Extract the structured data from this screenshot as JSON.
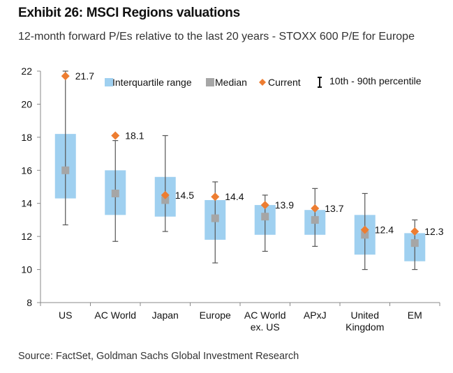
{
  "header": {
    "title": "Exhibit 26: MSCI Regions valuations",
    "subtitle": "12-month forward P/Es relative to the last 20 years - STOXX 600 P/E for Europe"
  },
  "footer": {
    "source": "Source: FactSet, Goldman Sachs Global Investment Research"
  },
  "colors": {
    "iqr": "#9fd0f0",
    "median": "#a6a6a6",
    "current": "#ed7d31",
    "whisker": "#555555",
    "axis": "#888888"
  },
  "chart_data": {
    "type": "box",
    "title": "Exhibit 26: MSCI Regions valuations",
    "subtitle": "12-month forward P/Es relative to the last 20 years - STOXX 600 P/E for Europe",
    "ylim": [
      8,
      22
    ],
    "yticks": [
      "8",
      "10",
      "12",
      "14",
      "16",
      "18",
      "20",
      "22"
    ],
    "grid": false,
    "legend": {
      "position": "top",
      "items": [
        "Interquartile range",
        "Median",
        "Current",
        "10th - 90th percentile"
      ]
    },
    "categories": [
      {
        "label": [
          "US"
        ],
        "p10": 12.7,
        "q1": 14.3,
        "median": 16.0,
        "q3": 18.2,
        "p90": 22.0,
        "current": 21.7,
        "current_label": "21.7"
      },
      {
        "label": [
          "AC World"
        ],
        "p10": 11.7,
        "q1": 13.3,
        "median": 14.6,
        "q3": 16.0,
        "p90": 17.8,
        "current": 18.1,
        "current_label": "18.1"
      },
      {
        "label": [
          "Japan"
        ],
        "p10": 12.3,
        "q1": 13.2,
        "median": 14.2,
        "q3": 15.6,
        "p90": 18.1,
        "current": 14.5,
        "current_label": "14.5"
      },
      {
        "label": [
          "Europe"
        ],
        "p10": 10.4,
        "q1": 11.8,
        "median": 13.1,
        "q3": 14.2,
        "p90": 15.3,
        "current": 14.4,
        "current_label": "14.4"
      },
      {
        "label": [
          "AC World",
          "ex. US"
        ],
        "p10": 11.1,
        "q1": 12.1,
        "median": 13.2,
        "q3": 13.9,
        "p90": 14.5,
        "current": 13.9,
        "current_label": "13.9"
      },
      {
        "label": [
          "APxJ"
        ],
        "p10": 11.4,
        "q1": 12.1,
        "median": 13.0,
        "q3": 13.6,
        "p90": 14.9,
        "current": 13.7,
        "current_label": "13.7"
      },
      {
        "label": [
          "United",
          "Kingdom"
        ],
        "p10": 10.0,
        "q1": 10.9,
        "median": 12.1,
        "q3": 13.3,
        "p90": 14.6,
        "current": 12.4,
        "current_label": "12.4"
      },
      {
        "label": [
          "EM"
        ],
        "p10": 10.0,
        "q1": 10.5,
        "median": 11.6,
        "q3": 12.2,
        "p90": 13.0,
        "current": 12.3,
        "current_label": "12.3"
      }
    ]
  }
}
